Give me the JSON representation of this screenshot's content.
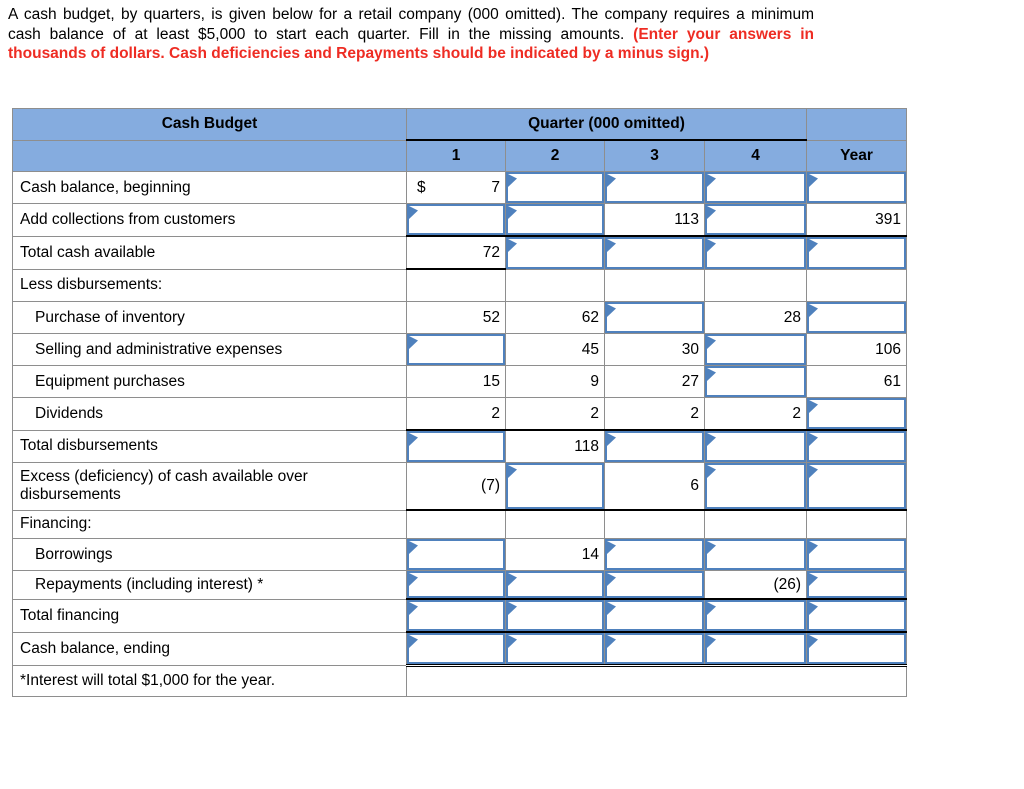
{
  "instructions": {
    "normal_text": "A cash budget, by quarters, is given below for a retail company (000 omitted). The company requires a minimum cash balance of at least $5,000 to start each quarter. Fill in the missing amounts. ",
    "emphasis_text": "(Enter your answers in thousands of dollars. Cash deficiencies and Repayments should be indicated by a minus sign.)"
  },
  "table": {
    "title": "Cash Budget",
    "group_header": "Quarter (000 omitted)",
    "columns": [
      "1",
      "2",
      "3",
      "4",
      "Year"
    ],
    "footnote": "*Interest will total $1,000 for the year.",
    "rows": [
      {
        "label": "Cash balance, beginning",
        "cells": [
          {
            "type": "given",
            "prefix": "$",
            "value": "7"
          },
          {
            "type": "input"
          },
          {
            "type": "input"
          },
          {
            "type": "input"
          },
          {
            "type": "input"
          }
        ]
      },
      {
        "label": "Add collections from customers",
        "cells": [
          {
            "type": "input"
          },
          {
            "type": "input"
          },
          {
            "type": "given",
            "value": "113"
          },
          {
            "type": "input"
          },
          {
            "type": "given",
            "value": "391"
          }
        ]
      },
      {
        "label": "Total cash available",
        "sum_top": true,
        "cells": [
          {
            "type": "given",
            "value": "72",
            "black_bottom": true
          },
          {
            "type": "input"
          },
          {
            "type": "input"
          },
          {
            "type": "input"
          },
          {
            "type": "input"
          }
        ]
      },
      {
        "label": "Less disbursements:",
        "cells": [
          {
            "type": "blank"
          },
          {
            "type": "blank"
          },
          {
            "type": "blank"
          },
          {
            "type": "blank"
          },
          {
            "type": "blank"
          }
        ]
      },
      {
        "label": "Purchase of inventory",
        "indent": true,
        "cells": [
          {
            "type": "given",
            "value": "52"
          },
          {
            "type": "given",
            "value": "62"
          },
          {
            "type": "input"
          },
          {
            "type": "given",
            "value": "28"
          },
          {
            "type": "input"
          }
        ]
      },
      {
        "label": "Selling and administrative expenses",
        "indent": true,
        "cells": [
          {
            "type": "input"
          },
          {
            "type": "given",
            "value": "45"
          },
          {
            "type": "given",
            "value": "30"
          },
          {
            "type": "input"
          },
          {
            "type": "given",
            "value": "106"
          }
        ]
      },
      {
        "label": "Equipment purchases",
        "indent": true,
        "cells": [
          {
            "type": "given",
            "value": "15"
          },
          {
            "type": "given",
            "value": "9"
          },
          {
            "type": "given",
            "value": "27"
          },
          {
            "type": "input"
          },
          {
            "type": "given",
            "value": "61"
          }
        ]
      },
      {
        "label": "Dividends",
        "indent": true,
        "cells": [
          {
            "type": "given",
            "value": "2"
          },
          {
            "type": "given",
            "value": "2"
          },
          {
            "type": "given",
            "value": "2"
          },
          {
            "type": "given",
            "value": "2"
          },
          {
            "type": "input"
          }
        ]
      },
      {
        "label": "Total disbursements",
        "sum_top": true,
        "cells": [
          {
            "type": "input"
          },
          {
            "type": "given",
            "value": "118"
          },
          {
            "type": "input"
          },
          {
            "type": "input"
          },
          {
            "type": "input"
          }
        ]
      },
      {
        "label": "Excess (deficiency) of cash available over disbursements",
        "tall": true,
        "sum_bottom": true,
        "cells": [
          {
            "type": "given",
            "value": "(7)"
          },
          {
            "type": "input"
          },
          {
            "type": "given",
            "value": "6"
          },
          {
            "type": "input"
          },
          {
            "type": "input"
          }
        ]
      },
      {
        "label": "Financing:",
        "short": true,
        "cells": [
          {
            "type": "blank"
          },
          {
            "type": "blank"
          },
          {
            "type": "blank"
          },
          {
            "type": "blank"
          },
          {
            "type": "blank"
          }
        ]
      },
      {
        "label": "Borrowings",
        "indent": true,
        "cells": [
          {
            "type": "input"
          },
          {
            "type": "given",
            "value": "14"
          },
          {
            "type": "input"
          },
          {
            "type": "input"
          },
          {
            "type": "input"
          }
        ]
      },
      {
        "label": "Repayments (including interest) *",
        "indent": true,
        "short": true,
        "cells": [
          {
            "type": "input"
          },
          {
            "type": "input"
          },
          {
            "type": "input"
          },
          {
            "type": "given",
            "value": "(26)"
          },
          {
            "type": "input"
          }
        ]
      },
      {
        "label": "Total financing",
        "sum_top": true,
        "cells": [
          {
            "type": "input"
          },
          {
            "type": "input"
          },
          {
            "type": "input"
          },
          {
            "type": "input"
          },
          {
            "type": "input"
          }
        ]
      },
      {
        "label": "Cash balance, ending",
        "sum_top": true,
        "double_bottom": true,
        "cells": [
          {
            "type": "input"
          },
          {
            "type": "input"
          },
          {
            "type": "input"
          },
          {
            "type": "input"
          },
          {
            "type": "input"
          }
        ]
      }
    ]
  },
  "colors": {
    "header_bg": "#85acdf",
    "input_border": "#4f81bd",
    "flag_color": "#4f81bd",
    "red": "#ee2c23"
  }
}
